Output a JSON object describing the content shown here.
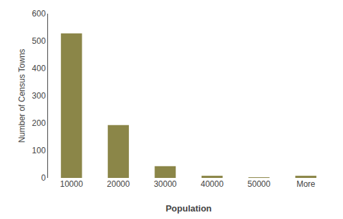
{
  "chart_data": {
    "type": "bar",
    "categories": [
      "10000",
      "20000",
      "30000",
      "40000",
      "50000",
      "More"
    ],
    "values": [
      528,
      193,
      43,
      8,
      2,
      8
    ],
    "color": "#8B8648",
    "xlabel": "Population",
    "ylabel": "Number of Census Towns",
    "ylim": [
      0,
      600
    ],
    "yticks": [
      0,
      100,
      200,
      300,
      400,
      500,
      600
    ],
    "grid": false
  }
}
